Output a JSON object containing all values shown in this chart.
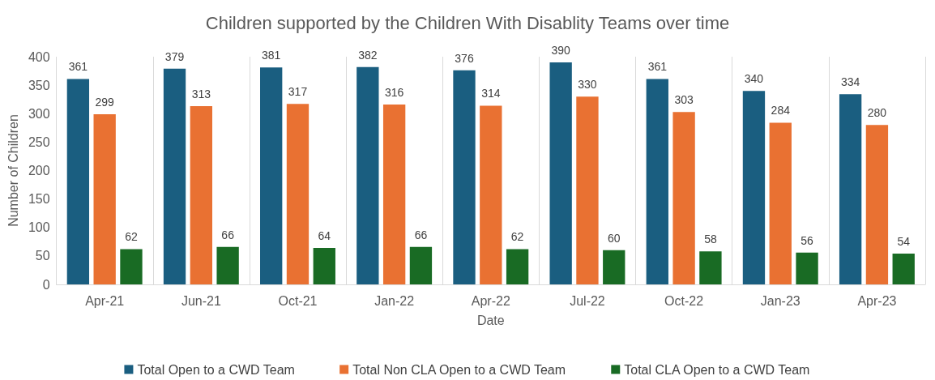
{
  "chart_data": {
    "type": "bar",
    "title": "Children supported by the Children With Disablity Teams over time",
    "xlabel": "Date",
    "ylabel": "Number of Children",
    "categories": [
      "Apr-21",
      "Jun-21",
      "Oct-21",
      "Jan-22",
      "Apr-22",
      "Jul-22",
      "Oct-22",
      "Jan-23",
      "Apr-23"
    ],
    "series": [
      {
        "name": "Total Open to a CWD Team",
        "color": "#1a5e80",
        "values": [
          361,
          379,
          381,
          382,
          376,
          390,
          361,
          340,
          334
        ]
      },
      {
        "name": "Total Non CLA Open to a CWD Team",
        "color": "#e97132",
        "values": [
          299,
          313,
          317,
          316,
          314,
          330,
          303,
          284,
          280
        ]
      },
      {
        "name": "Total CLA Open to a CWD Team",
        "color": "#196b24",
        "values": [
          62,
          66,
          64,
          66,
          62,
          60,
          58,
          56,
          54
        ]
      }
    ],
    "ylim": [
      0,
      400
    ],
    "yticks": [
      0,
      50,
      100,
      150,
      200,
      250,
      300,
      350,
      400
    ],
    "grid": "x",
    "legend": "bottom",
    "data_labels": true
  }
}
